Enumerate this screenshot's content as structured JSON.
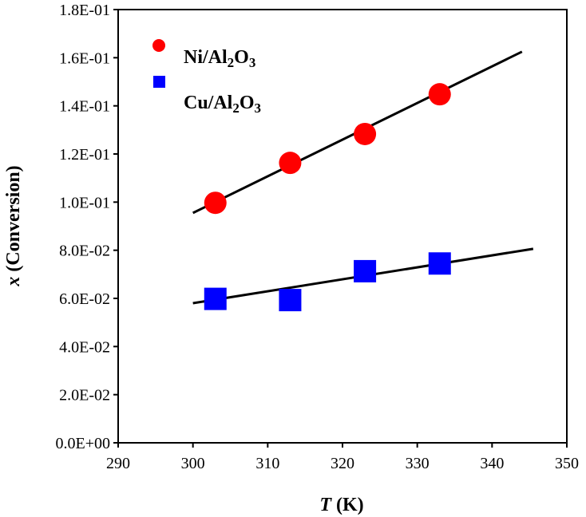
{
  "chart_data": {
    "type": "scatter",
    "xlabel_var": "T",
    "xlabel_unit": " (K)",
    "ylabel_var": "x",
    "ylabel_unit": " (Conversion)",
    "xlim": [
      290,
      350
    ],
    "ylim": [
      0,
      0.18
    ],
    "x_ticks": [
      290,
      300,
      310,
      320,
      330,
      340,
      350
    ],
    "x_tick_labels": [
      "290",
      "300",
      "310",
      "320",
      "330",
      "340",
      "350"
    ],
    "y_ticks": [
      0,
      0.02,
      0.04,
      0.06,
      0.08,
      0.1,
      0.12,
      0.14,
      0.16,
      0.18
    ],
    "y_tick_labels": [
      "0.0E+00",
      "2.0E-02",
      "4.0E-02",
      "6.0E-02",
      "8.0E-02",
      "1.0E-01",
      "1.2E-01",
      "1.4E-01",
      "1.6E-01",
      "1.8E-01"
    ],
    "legend_position": "top-left",
    "series": [
      {
        "name": "Ni/Al2O3",
        "legend_parts": [
          "Ni/Al",
          "2",
          "O",
          "3"
        ],
        "marker": "circle",
        "color": "#ff0000",
        "x": [
          303,
          313,
          323,
          333
        ],
        "y": [
          0.0997,
          0.1163,
          0.1283,
          0.1448
        ],
        "trendline": {
          "x": [
            300,
            344
          ],
          "y": [
            0.0955,
            0.1625
          ],
          "color": "#000000"
        }
      },
      {
        "name": "Cu/Al2O3",
        "legend_parts": [
          "Cu/Al",
          "2",
          "O",
          "3"
        ],
        "marker": "square",
        "color": "#0000ff",
        "x": [
          303,
          313,
          323,
          333
        ],
        "y": [
          0.0598,
          0.0593,
          0.0713,
          0.0745
        ],
        "trendline": {
          "x": [
            300,
            345.5
          ],
          "y": [
            0.058,
            0.0806
          ],
          "color": "#000000"
        }
      }
    ]
  }
}
